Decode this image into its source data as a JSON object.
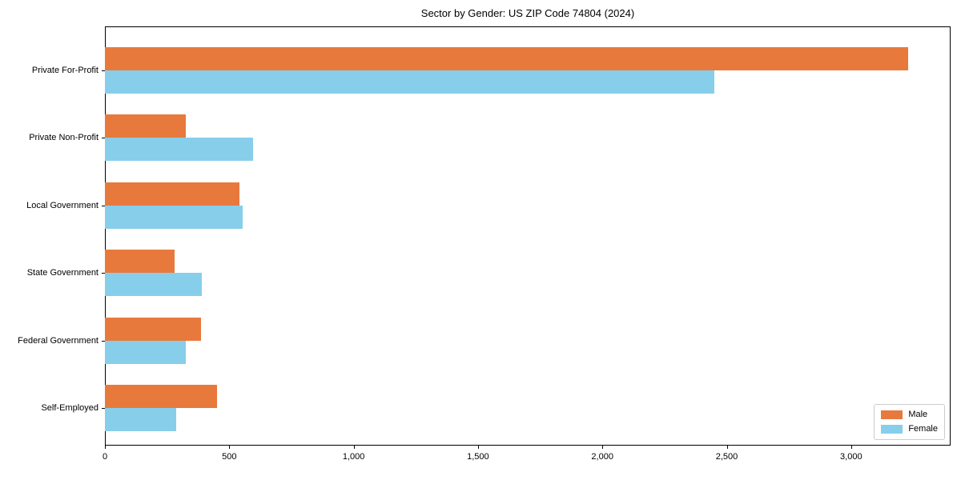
{
  "chart_data": {
    "type": "bar",
    "orientation": "horizontal",
    "title": "Sector by Gender: US ZIP Code 74804 (2024)",
    "categories": [
      "Private For-Profit",
      "Private Non-Profit",
      "Local Government",
      "State Government",
      "Federal Government",
      "Self-Employed"
    ],
    "series": [
      {
        "name": "Male",
        "color": "#e8793d",
        "values": [
          3230,
          325,
          540,
          280,
          385,
          450
        ]
      },
      {
        "name": "Female",
        "color": "#87ceeb",
        "values": [
          2450,
          595,
          555,
          390,
          325,
          285
        ]
      }
    ],
    "xlim": [
      0,
      3400
    ],
    "x_ticks": [
      {
        "value": 0,
        "label": "0"
      },
      {
        "value": 500,
        "label": "500"
      },
      {
        "value": 1000,
        "label": "1,000"
      },
      {
        "value": 1500,
        "label": "1,500"
      },
      {
        "value": 2000,
        "label": "2,000"
      },
      {
        "value": 2500,
        "label": "2,500"
      },
      {
        "value": 3000,
        "label": "3,000"
      }
    ],
    "xlabel": "",
    "ylabel": "",
    "grid": false,
    "legend_position": "lower right"
  }
}
